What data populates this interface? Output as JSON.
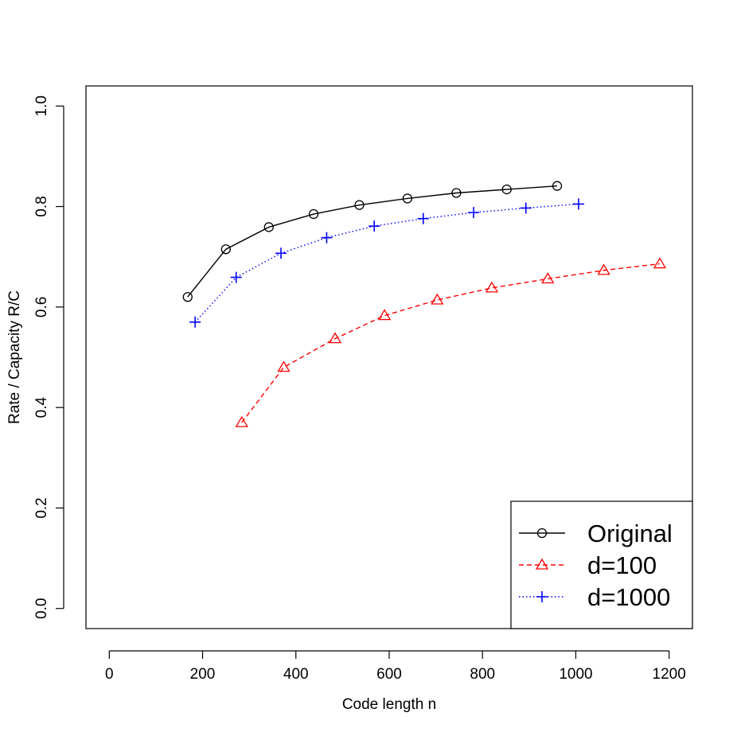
{
  "chart_data": {
    "type": "line",
    "xlabel": "Code length n",
    "ylabel": "Rate / Capacity R/C",
    "xlim": [
      -50,
      1250
    ],
    "ylim": [
      -0.04,
      1.04
    ],
    "x_ticks": [
      0,
      200,
      400,
      600,
      800,
      1000,
      1200
    ],
    "y_ticks": [
      0.0,
      0.2,
      0.4,
      0.6,
      0.8,
      1.0
    ],
    "x_tick_labels": [
      "0",
      "200",
      "400",
      "600",
      "800",
      "1000",
      "1200"
    ],
    "y_tick_labels": [
      "0.0",
      "0.2",
      "0.4",
      "0.6",
      "0.8",
      "1.0"
    ],
    "legend_position": "bottom-right",
    "series": [
      {
        "name": "Original",
        "color": "#000000",
        "marker": "circle",
        "line_style": "solid",
        "x": [
          168,
          250,
          342,
          438,
          536,
          639,
          744,
          852,
          960
        ],
        "y": [
          0.62,
          0.715,
          0.759,
          0.785,
          0.803,
          0.816,
          0.827,
          0.834,
          0.841
        ]
      },
      {
        "name": "d=100",
        "color": "#ff0000",
        "marker": "triangle",
        "line_style": "dashed",
        "x": [
          284,
          374,
          484,
          590,
          703,
          820,
          940,
          1060,
          1180
        ],
        "y": [
          0.37,
          0.48,
          0.537,
          0.583,
          0.614,
          0.638,
          0.656,
          0.673,
          0.686
        ]
      },
      {
        "name": "d=1000",
        "color": "#0000ff",
        "marker": "plus",
        "line_style": "dotted",
        "x": [
          184,
          272,
          368,
          466,
          568,
          673,
          781,
          893,
          1006
        ],
        "y": [
          0.57,
          0.659,
          0.707,
          0.738,
          0.761,
          0.776,
          0.788,
          0.797,
          0.805
        ]
      }
    ]
  }
}
